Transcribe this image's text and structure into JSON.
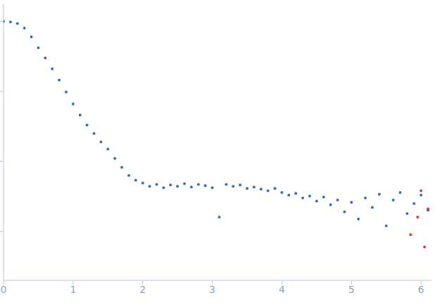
{
  "chart_data": {
    "type": "scatter",
    "log": "y",
    "grid": false,
    "tick_labels": "x",
    "marker": "circle",
    "xlim": [
      0,
      6.15
    ],
    "xticks": [
      0,
      1,
      2,
      3,
      4,
      5,
      6
    ],
    "ylim": [
      0.0002,
      1.8
    ],
    "yticks": [
      0.001,
      0.01,
      0.1,
      1
    ],
    "series": [
      {
        "color": "#3a6cc0",
        "x": [
          0,
          0.1,
          0.2,
          0.3,
          0.4,
          0.5,
          0.6,
          0.7,
          0.8,
          0.9,
          1.0,
          1.1,
          1.2,
          1.3,
          1.4,
          1.5,
          1.6,
          1.7,
          1.8,
          1.9,
          2.0,
          2.1,
          2.2,
          2.3,
          2.4,
          2.5,
          2.6,
          2.7,
          2.8,
          2.9,
          3.0,
          3.1,
          3.2,
          3.3,
          3.4,
          3.5,
          3.6,
          3.7,
          3.8,
          3.9,
          4.0,
          4.1,
          4.2,
          4.3,
          4.4,
          4.5,
          4.6,
          4.7,
          4.8,
          4.9,
          5.0,
          5.1,
          5.2,
          5.3,
          5.4,
          5.5,
          5.6,
          5.7,
          5.8,
          5.9,
          6.0,
          6.1
        ],
        "values": [
          1.0,
          0.98,
          0.93,
          0.8,
          0.6,
          0.42,
          0.3,
          0.21,
          0.145,
          0.098,
          0.066,
          0.046,
          0.033,
          0.025,
          0.019,
          0.015,
          0.011,
          0.0082,
          0.0063,
          0.0054,
          0.0049,
          0.0044,
          0.0047,
          0.0042,
          0.0046,
          0.0044,
          0.0048,
          0.0043,
          0.0047,
          0.0045,
          0.0042,
          0.0016,
          0.0047,
          0.0044,
          0.0046,
          0.0041,
          0.0043,
          0.004,
          0.0038,
          0.0041,
          0.0036,
          0.0033,
          0.0035,
          0.003,
          0.0032,
          0.0027,
          0.0031,
          0.0024,
          0.0028,
          0.0019,
          0.0026,
          0.0015,
          0.003,
          0.0022,
          0.0034,
          0.0012,
          0.0028,
          0.0036,
          0.0018,
          0.0025,
          0.0033,
          0.002
        ]
      },
      {
        "color": "#e8303a",
        "x": [
          5.85,
          5.95,
          6.0,
          6.05,
          6.1
        ],
        "values": [
          0.0009,
          0.0016,
          0.0038,
          0.0006,
          0.0021
        ]
      }
    ]
  }
}
